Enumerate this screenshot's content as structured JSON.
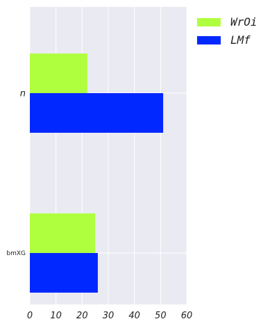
{
  "chart_data": {
    "type": "bar",
    "orientation": "horizontal",
    "categories": [
      "n",
      "bmXG"
    ],
    "series": [
      {
        "name": "WrOi",
        "color": "#b0ff3f",
        "values": [
          22,
          25
        ]
      },
      {
        "name": "LMf",
        "color": "#0028ff",
        "values": [
          51,
          26
        ]
      }
    ],
    "xlim": [
      0,
      60
    ],
    "xticks": [
      "0",
      "10",
      "20",
      "30",
      "40",
      "50",
      "60"
    ],
    "grid": true,
    "legend": "top-right"
  }
}
